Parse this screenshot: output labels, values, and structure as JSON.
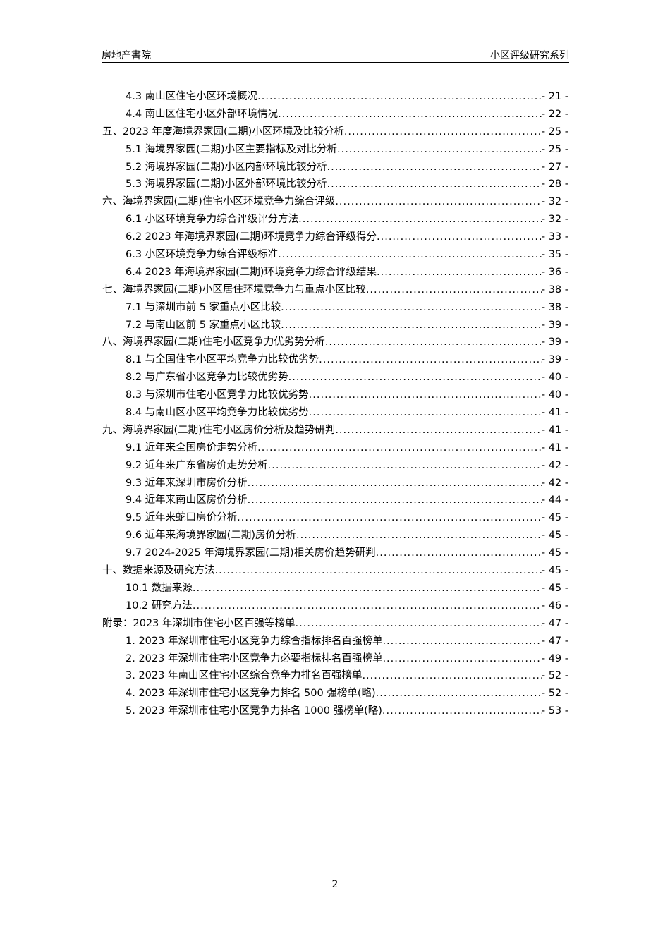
{
  "header": {
    "left": "房地产書院",
    "right": "小区评级研究系列"
  },
  "toc": [
    {
      "level": 2,
      "title": "4.3 南山区住宅小区环境概况",
      "page": "- 21 -"
    },
    {
      "level": 2,
      "title": "4.4 南山区住宅小区外部环境情况",
      "page": "- 22 -"
    },
    {
      "level": 1,
      "title": "五、2023 年度海境界家园(二期)小区环境及比较分析",
      "page": "- 25 -"
    },
    {
      "level": 2,
      "title": "5.1 海境界家园(二期)小区主要指标及对比分析",
      "page": "- 25 -"
    },
    {
      "level": 2,
      "title": "5.2 海境界家园(二期)小区内部环境比较分析",
      "page": "- 27 -"
    },
    {
      "level": 2,
      "title": "5.3 海境界家园(二期)小区外部环境比较分析",
      "page": "- 28 -"
    },
    {
      "level": 1,
      "title": "六、海境界家园(二期)住宅小区环境竞争力综合评级",
      "page": "- 32 -"
    },
    {
      "level": 2,
      "title": "6.1 小区环境竞争力综合评级评分方法",
      "page": "- 32 -"
    },
    {
      "level": 2,
      "title": "6.2 2023 年海境界家园(二期)环境竞争力综合评级得分",
      "page": "- 33 -"
    },
    {
      "level": 2,
      "title": "6.3 小区环境竞争力综合评级标准",
      "page": "- 35 -"
    },
    {
      "level": 2,
      "title": "6.4 2023 年海境界家园(二期)环境竞争力综合评级结果",
      "page": "- 36 -"
    },
    {
      "level": 1,
      "title": "七、海境界家园(二期)小区居住环境竞争力与重点小区比较",
      "page": "- 38 -"
    },
    {
      "level": 2,
      "title": "7.1 与深圳市前 5 家重点小区比较",
      "page": "- 38 -"
    },
    {
      "level": 2,
      "title": "7.2 与南山区前 5 家重点小区比较",
      "page": "- 39 -"
    },
    {
      "level": 1,
      "title": "八、海境界家园(二期)住宅小区竞争力优劣势分析",
      "page": "- 39 -"
    },
    {
      "level": 2,
      "title": "8.1 与全国住宅小区平均竞争力比较优劣势",
      "page": "- 39 -"
    },
    {
      "level": 2,
      "title": "8.2 与广东省小区竞争力比较优劣势",
      "page": "- 40 -"
    },
    {
      "level": 2,
      "title": "8.3 与深圳市住宅小区竞争力比较优劣势",
      "page": "- 40 -"
    },
    {
      "level": 2,
      "title": "8.4 与南山区小区平均竞争力比较优劣势",
      "page": "- 41 -"
    },
    {
      "level": 1,
      "title": "九、海境界家园(二期)住宅小区房价分析及趋势研判",
      "page": "- 41 -"
    },
    {
      "level": 2,
      "title": "9.1 近年来全国房价走势分析",
      "page": "- 41 -"
    },
    {
      "level": 2,
      "title": "9.2 近年来广东省房价走势分析",
      "page": "- 42 -"
    },
    {
      "level": 2,
      "title": "9.3 近年来深圳市房价分析",
      "page": "- 42 -"
    },
    {
      "level": 2,
      "title": "9.4 近年来南山区房价分析",
      "page": "- 44 -"
    },
    {
      "level": 2,
      "title": "9.5 近年来蛇口房价分析",
      "page": "- 45 -"
    },
    {
      "level": 2,
      "title": "9.6 近年来海境界家园(二期)房价分析",
      "page": "- 45 -"
    },
    {
      "level": 2,
      "title": "9.7 2024-2025 年海境界家园(二期)相关房价趋势研判",
      "page": "- 45 -"
    },
    {
      "level": 1,
      "title": "十、数据来源及研究方法",
      "page": "- 45 -"
    },
    {
      "level": 2,
      "title": "10.1 数据来源",
      "page": "- 45 -"
    },
    {
      "level": 2,
      "title": "10.2 研究方法",
      "page": "- 46 -"
    },
    {
      "level": 1,
      "title": "附录：2023 年深圳市住宅小区百强等榜单",
      "page": "- 47 -"
    },
    {
      "level": 2,
      "title": "1. 2023 年深圳市住宅小区竞争力综合指标排名百强榜单",
      "page": "- 47 -"
    },
    {
      "level": 2,
      "title": "2. 2023 年深圳市住宅小区竞争力必要指标排名百强榜单",
      "page": "- 49 -"
    },
    {
      "level": 2,
      "title": "3. 2023 年南山区住宅小区综合竞争力排名百强榜单",
      "page": "- 52 -"
    },
    {
      "level": 2,
      "title": "4. 2023 年深圳市住宅小区竞争力排名 500 强榜单(略)",
      "page": "- 52 -"
    },
    {
      "level": 2,
      "title": "5. 2023 年深圳市住宅小区竞争力排名 1000 强榜单(略)",
      "page": "- 53 -"
    }
  ],
  "footer": {
    "page_number": "2"
  }
}
